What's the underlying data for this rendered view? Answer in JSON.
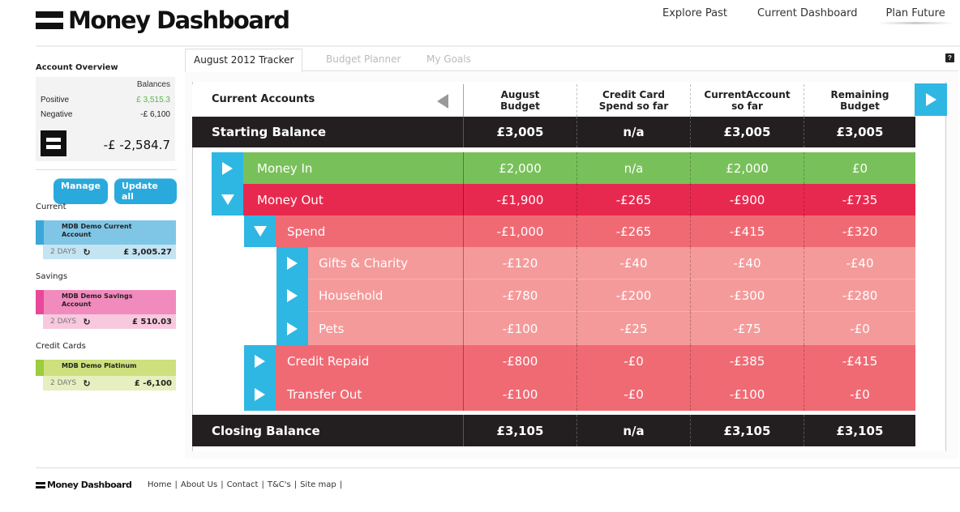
{
  "app": {
    "title": "Money Dashboard"
  },
  "topnav": [
    "Explore Past",
    "Current Dashboard",
    "Plan Future"
  ],
  "sidebar": {
    "title": "Account Overview",
    "balances_label": "Balances",
    "positive_label": "Positive",
    "positive_value": "£ 3,515.3",
    "negative_label": "Negative",
    "negative_value": "-£ 6,100",
    "total": "-£ -2,584.7",
    "manage_label": "Manage",
    "update_label": "Update all",
    "sections": [
      {
        "title": "Current",
        "name": "MDB Demo Current Account",
        "days": "2 DAYS",
        "balance": "£ 3,005.27",
        "strip": "#3aa7d8",
        "top": "#7fc6e6",
        "bot": "#c4e4f2"
      },
      {
        "title": "Savings",
        "name": "MDB Demo Savings Account",
        "days": "2 DAYS",
        "balance": "£ 510.03",
        "strip": "#e8489a",
        "top": "#f18bbd",
        "bot": "#f8c8df"
      },
      {
        "title": "Credit Cards",
        "name": "MDB Demo Platinum",
        "days": "2 DAYS",
        "balance": "£ -6,100",
        "strip": "#9dcc3c",
        "top": "#cde07d",
        "bot": "#e6efbf"
      }
    ]
  },
  "tabs": [
    "August 2012 Tracker",
    "Budget Planner",
    "My Goals"
  ],
  "help": "?",
  "table": {
    "header_label": "Current Accounts",
    "columns": [
      "August\nBudget",
      "Credit Card\nSpend so far",
      "CurrentAccount\nso far",
      "Remaining\nBudget"
    ],
    "starting": {
      "label": "Starting Balance",
      "values": [
        "£3,005",
        "n/a",
        "£3,005",
        "£3,005"
      ]
    },
    "rows": [
      {
        "label": "Money In",
        "values": [
          "£2,000",
          "n/a",
          "£2,000",
          "£0"
        ]
      },
      {
        "label": "Money Out",
        "values": [
          "-£1,900",
          "-£265",
          "-£900",
          "-£735"
        ]
      },
      {
        "label": "Spend",
        "values": [
          "-£1,000",
          "-£265",
          "-£415",
          "-£320"
        ]
      },
      {
        "label": "Gifts & Charity",
        "values": [
          "-£120",
          "-£40",
          "-£40",
          "-£40"
        ]
      },
      {
        "label": "Household",
        "values": [
          "-£780",
          "-£200",
          "-£300",
          "-£280"
        ]
      },
      {
        "label": "Pets",
        "values": [
          "-£100",
          "-£25",
          "-£75",
          "-£0"
        ]
      },
      {
        "label": "Credit Repaid",
        "values": [
          "-£800",
          "-£0",
          "-£385",
          "-£415"
        ]
      },
      {
        "label": "Transfer Out",
        "values": [
          "-£100",
          "-£0",
          "-£100",
          "-£0"
        ]
      }
    ],
    "closing": {
      "label": "Closing Balance",
      "values": [
        "£3,105",
        "n/a",
        "£3,105",
        "£3,105"
      ]
    }
  },
  "footer": {
    "logo": "Money Dashboard",
    "links": [
      "Home",
      "About Us",
      "Contact",
      "T&C's",
      "Site map"
    ]
  }
}
